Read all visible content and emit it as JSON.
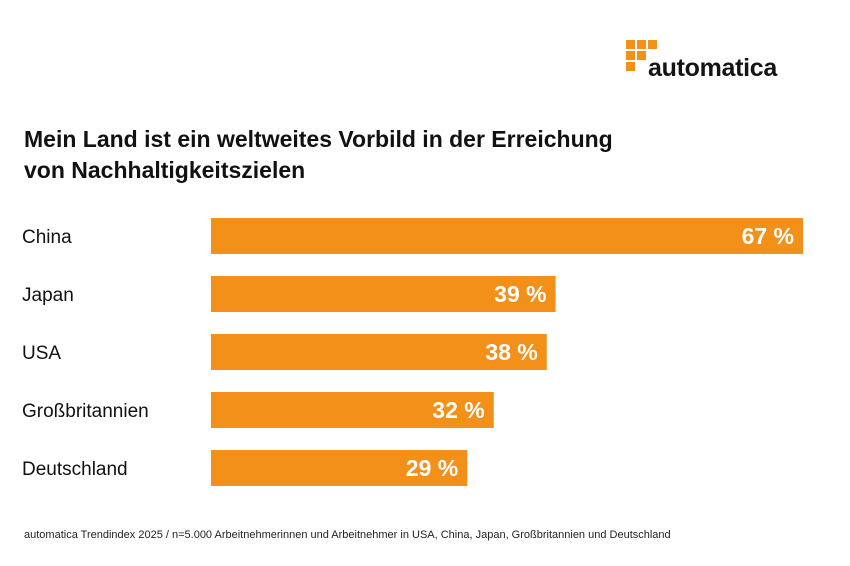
{
  "logo": {
    "text": "automatica",
    "accent": "#F39019"
  },
  "chart_data": {
    "type": "bar",
    "orientation": "horizontal",
    "title_lines": [
      "Mein Land ist ein weltweites Vorbild in der Erreichung",
      "von Nachhaltigkeitszielen"
    ],
    "categories": [
      "China",
      "Japan",
      "USA",
      "Großbritannien",
      "Deutschland"
    ],
    "values": [
      67,
      39,
      38,
      32,
      29
    ],
    "value_labels": [
      "67 %",
      "39 %",
      "38 %",
      "32 %",
      "29 %"
    ],
    "unit": "%",
    "xlim": [
      0,
      67
    ],
    "bar_color": "#F39019",
    "grid": false,
    "legend": "none"
  },
  "footnote": "automatica Trendindex 2025 / n=5.000 Arbeitnehmerinnen und Arbeitnehmer in USA, China, Japan, Großbritannien und Deutschland"
}
